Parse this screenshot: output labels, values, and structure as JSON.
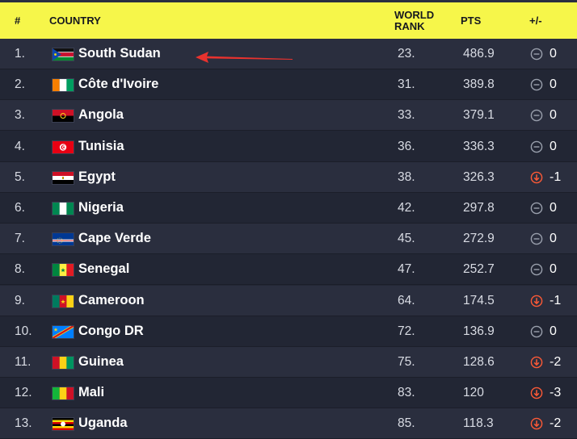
{
  "header": {
    "rank_label": "#",
    "country_label": "COUNTRY",
    "world_rank_line1": "WORLD",
    "world_rank_line2": "RANK",
    "pts_label": "PTS",
    "diff_label": "+/-"
  },
  "colors": {
    "header_bg": "#f6f64a",
    "row_odd": "#2a2e3e",
    "row_even": "#222634",
    "down_icon": "#ff5a36",
    "neutral_icon": "#9aa0ad",
    "annotation_arrow": "#e8322e"
  },
  "rows": [
    {
      "rank": "1.",
      "country": "South Sudan",
      "world_rank": "23.",
      "pts": "486.9",
      "trend": "neutral",
      "trend_icon": "minus-circle-icon",
      "diff": "0"
    },
    {
      "rank": "2.",
      "country": "Côte d'Ivoire",
      "world_rank": "31.",
      "pts": "389.8",
      "trend": "neutral",
      "trend_icon": "minus-circle-icon",
      "diff": "0"
    },
    {
      "rank": "3.",
      "country": "Angola",
      "world_rank": "33.",
      "pts": "379.1",
      "trend": "neutral",
      "trend_icon": "minus-circle-icon",
      "diff": "0"
    },
    {
      "rank": "4.",
      "country": "Tunisia",
      "world_rank": "36.",
      "pts": "336.3",
      "trend": "neutral",
      "trend_icon": "minus-circle-icon",
      "diff": "0"
    },
    {
      "rank": "5.",
      "country": "Egypt",
      "world_rank": "38.",
      "pts": "326.3",
      "trend": "down",
      "trend_icon": "down-arrow-circle-icon",
      "diff": "-1"
    },
    {
      "rank": "6.",
      "country": "Nigeria",
      "world_rank": "42.",
      "pts": "297.8",
      "trend": "neutral",
      "trend_icon": "minus-circle-icon",
      "diff": "0"
    },
    {
      "rank": "7.",
      "country": "Cape Verde",
      "world_rank": "45.",
      "pts": "272.9",
      "trend": "neutral",
      "trend_icon": "minus-circle-icon",
      "diff": "0"
    },
    {
      "rank": "8.",
      "country": "Senegal",
      "world_rank": "47.",
      "pts": "252.7",
      "trend": "neutral",
      "trend_icon": "minus-circle-icon",
      "diff": "0"
    },
    {
      "rank": "9.",
      "country": "Cameroon",
      "world_rank": "64.",
      "pts": "174.5",
      "trend": "down",
      "trend_icon": "down-arrow-circle-icon",
      "diff": "-1"
    },
    {
      "rank": "10.",
      "country": "Congo DR",
      "world_rank": "72.",
      "pts": "136.9",
      "trend": "neutral",
      "trend_icon": "minus-circle-icon",
      "diff": "0"
    },
    {
      "rank": "11.",
      "country": "Guinea",
      "world_rank": "75.",
      "pts": "128.6",
      "trend": "down",
      "trend_icon": "down-arrow-circle-icon",
      "diff": "-2"
    },
    {
      "rank": "12.",
      "country": "Mali",
      "world_rank": "83.",
      "pts": "120",
      "trend": "down",
      "trend_icon": "down-arrow-circle-icon",
      "diff": "-3"
    },
    {
      "rank": "13.",
      "country": "Uganda",
      "world_rank": "85.",
      "pts": "118.3",
      "trend": "down",
      "trend_icon": "down-arrow-circle-icon",
      "diff": "-2"
    }
  ]
}
